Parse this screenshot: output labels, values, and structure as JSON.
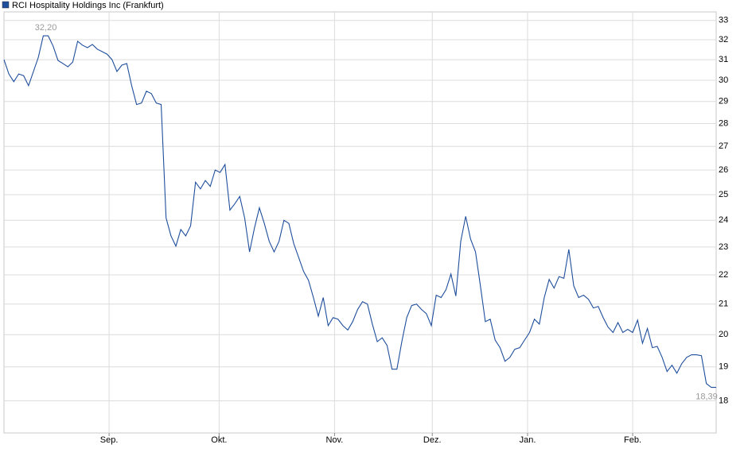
{
  "chart_data": {
    "type": "line",
    "series": [
      {
        "name": "RCI Hospitality Holdings Inc (Frankfurt)",
        "color": "#1f4e9c",
        "values": [
          31.0,
          30.3,
          29.93,
          30.3,
          30.22,
          29.74,
          30.42,
          31.12,
          32.2,
          32.2,
          31.68,
          30.96,
          30.81,
          30.65,
          30.88,
          31.92,
          31.72,
          31.6,
          31.76,
          31.52,
          31.4,
          31.27,
          31.0,
          30.42,
          30.73,
          30.81,
          29.74,
          28.86,
          28.93,
          29.48,
          29.37,
          28.93,
          28.86,
          24.09,
          23.41,
          23.03,
          23.65,
          23.41,
          23.79,
          25.5,
          25.23,
          25.57,
          25.33,
          26.0,
          25.9,
          26.23,
          24.39,
          24.64,
          24.93,
          24.09,
          22.82,
          23.71,
          24.48,
          23.88,
          23.21,
          22.82,
          23.21,
          24.0,
          23.88,
          23.12,
          22.62,
          22.12,
          21.81,
          21.22,
          20.6,
          21.22,
          20.29,
          20.55,
          20.5,
          20.29,
          20.15,
          20.42,
          20.82,
          21.08,
          21.0,
          20.34,
          19.78,
          19.9,
          19.66,
          18.93,
          18.93,
          19.78,
          20.55,
          20.95,
          21.0,
          20.82,
          20.68,
          20.29,
          21.3,
          21.22,
          21.49,
          22.03,
          21.27,
          23.21,
          24.15,
          23.29,
          22.82,
          21.62,
          20.42,
          20.5,
          19.83,
          19.59,
          19.17,
          19.29,
          19.54,
          19.59,
          19.83,
          20.07,
          20.5,
          20.34,
          21.22,
          21.84,
          21.54,
          21.94,
          21.88,
          22.91,
          21.62,
          21.22,
          21.3,
          21.16,
          20.87,
          20.92,
          20.55,
          20.24,
          20.07,
          20.39,
          20.07,
          20.17,
          20.07,
          20.47,
          19.73,
          20.2,
          19.59,
          19.63,
          19.29,
          18.86,
          19.05,
          18.81,
          19.1,
          19.29,
          19.37,
          19.37,
          19.34,
          18.5,
          18.39,
          18.39
        ]
      }
    ],
    "annotations": [
      {
        "label": "32,20",
        "value": 32.2
      },
      {
        "label": "18,39",
        "value": 18.39
      }
    ],
    "xlim": [
      0,
      145
    ],
    "xticks": [
      {
        "value": 21.4,
        "label": "Sep."
      },
      {
        "value": 43.8,
        "label": "Okt."
      },
      {
        "value": 67.3,
        "label": "Nov."
      },
      {
        "value": 87.2,
        "label": "Dez."
      },
      {
        "value": 106.6,
        "label": "Jan."
      },
      {
        "value": 128.0,
        "label": "Feb."
      }
    ],
    "ylim": [
      17.1,
      33.45
    ],
    "yticks": [
      18,
      19,
      20,
      21,
      22,
      23,
      24,
      25,
      26,
      27,
      28,
      29,
      30,
      31,
      32,
      33
    ],
    "log_y": true,
    "grid": true
  }
}
